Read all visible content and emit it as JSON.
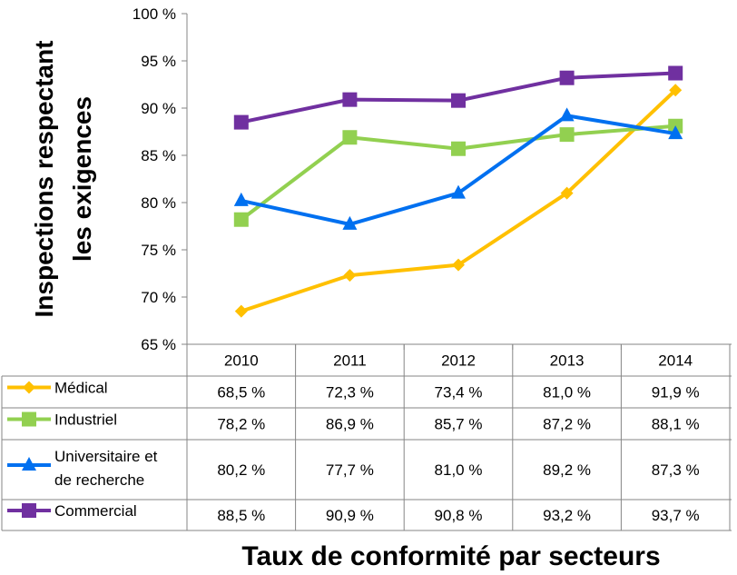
{
  "chart_data": {
    "type": "line",
    "ylabel_lines": [
      "Inspections respectant",
      "les exigences"
    ],
    "xlabel": "Taux de conformité par secteurs",
    "categories": [
      "2010",
      "2011",
      "2012",
      "2013",
      "2014"
    ],
    "y_ticks": [
      "65 %",
      "70 %",
      "75 %",
      "80 %",
      "85 %",
      "90 %",
      "95 %",
      "100 %"
    ],
    "ylim": [
      65,
      100
    ],
    "grid": false,
    "legend": "data-table-rows",
    "series": [
      {
        "name_lines": [
          "Médical"
        ],
        "marker": "diamond",
        "color": "#FFC000",
        "values": [
          68.5,
          72.3,
          73.4,
          81.0,
          91.9
        ],
        "labels": [
          "68,5 %",
          "72,3 %",
          "73,4 %",
          "81,0 %",
          "91,9 %"
        ]
      },
      {
        "name_lines": [
          "Industriel"
        ],
        "marker": "square",
        "color": "#92D050",
        "values": [
          78.2,
          86.9,
          85.7,
          87.2,
          88.1
        ],
        "labels": [
          "78,2 %",
          "86,9 %",
          "85,7 %",
          "87,2 %",
          "88,1 %"
        ]
      },
      {
        "name_lines": [
          "Universitaire et",
          "de recherche"
        ],
        "marker": "triangle",
        "color": "#0070F0",
        "values": [
          80.2,
          77.7,
          81.0,
          89.2,
          87.3
        ],
        "labels": [
          "80,2 %",
          "77,7 %",
          "81,0 %",
          "89,2 %",
          "87,3 %"
        ]
      },
      {
        "name_lines": [
          "Commercial"
        ],
        "marker": "square",
        "color": "#7030A0",
        "values": [
          88.5,
          90.9,
          90.8,
          93.2,
          93.7
        ],
        "labels": [
          "88,5 %",
          "90,9 %",
          "90,8 %",
          "93,2 %",
          "93,7 %"
        ]
      }
    ]
  }
}
